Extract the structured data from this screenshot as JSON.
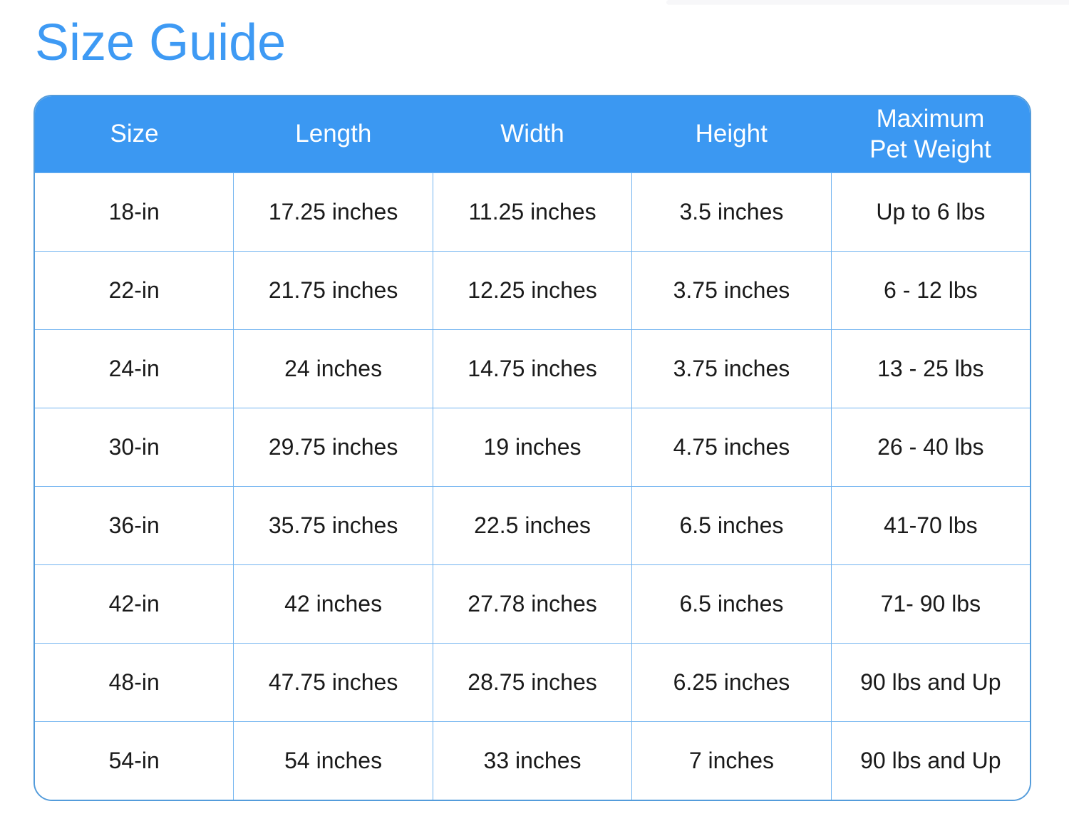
{
  "page": {
    "title": "Size Guide"
  },
  "colors": {
    "title_blue": "#3E9AF4",
    "header_blue": "#3B98F2",
    "grid_line_blue": "#72B4F0",
    "outer_border_blue": "#549CDB",
    "cell_text": "#1A1A1A",
    "header_text": "#FFFFFF"
  },
  "chart_data": {
    "type": "table",
    "title": "Size Guide",
    "columns": [
      {
        "key": "size",
        "label": "Size"
      },
      {
        "key": "length",
        "label": "Length"
      },
      {
        "key": "width",
        "label": "Width"
      },
      {
        "key": "height",
        "label": "Height"
      },
      {
        "key": "max-pet-weight",
        "label": "Maximum Pet Weight"
      }
    ],
    "rows": [
      [
        "18-in",
        "17.25 inches",
        "11.25 inches",
        "3.5 inches",
        "Up to 6 lbs"
      ],
      [
        "22-in",
        "21.75 inches",
        "12.25 inches",
        "3.75 inches",
        "6 - 12 lbs"
      ],
      [
        "24-in",
        "24 inches",
        "14.75 inches",
        "3.75 inches",
        "13 - 25 lbs"
      ],
      [
        "30-in",
        "29.75 inches",
        "19 inches",
        "4.75 inches",
        "26 - 40 lbs"
      ],
      [
        "36-in",
        "35.75 inches",
        "22.5 inches",
        "6.5 inches",
        "41-70 lbs"
      ],
      [
        "42-in",
        "42 inches",
        "27.78 inches",
        "6.5 inches",
        "71- 90 lbs"
      ],
      [
        "48-in",
        "47.75 inches",
        "28.75 inches",
        "6.25 inches",
        "90 lbs and Up"
      ],
      [
        "54-in",
        "54 inches",
        "33 inches",
        "7 inches",
        "90 lbs and Up"
      ]
    ]
  }
}
